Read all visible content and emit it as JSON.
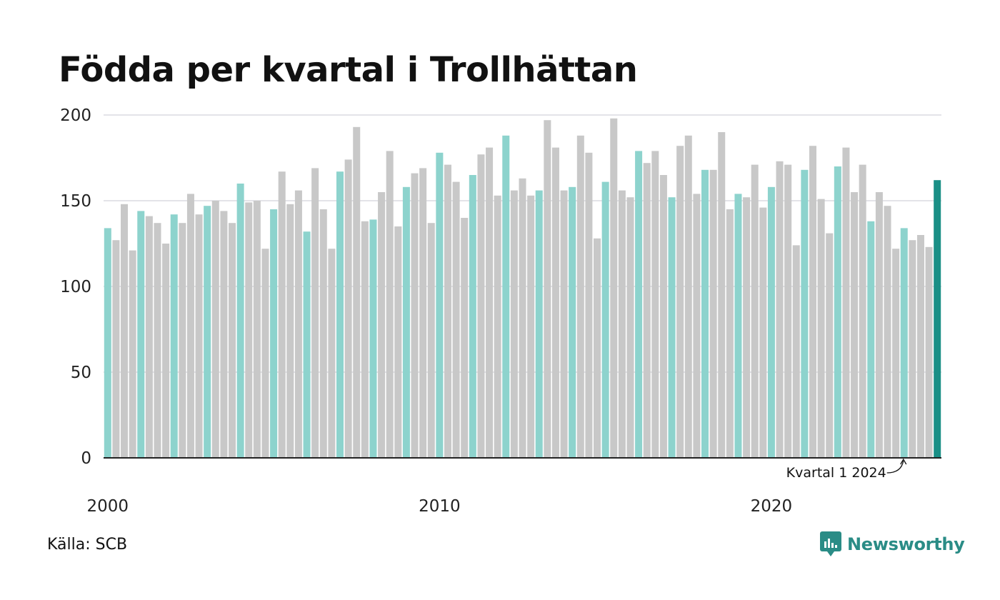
{
  "header": {
    "title": "Födda per kvartal i Trollhättan"
  },
  "footer": {
    "source": "Källa: SCB",
    "brand": "Newsworthy"
  },
  "colors": {
    "q1": "#8dd3cd",
    "other": "#c8c8c8",
    "highlight": "#1a8f86",
    "grid": "#e3e3e8",
    "axis": "#222222",
    "brand": "#2a8c86"
  },
  "chart_data": {
    "type": "bar",
    "start_year": 2000,
    "values": [
      134,
      127,
      148,
      121,
      144,
      141,
      137,
      125,
      142,
      137,
      154,
      142,
      147,
      150,
      144,
      137,
      160,
      149,
      150,
      122,
      145,
      167,
      148,
      156,
      132,
      169,
      145,
      122,
      167,
      174,
      193,
      138,
      139,
      155,
      179,
      135,
      158,
      166,
      169,
      137,
      178,
      171,
      161,
      140,
      165,
      177,
      181,
      153,
      188,
      156,
      163,
      153,
      156,
      197,
      181,
      156,
      158,
      188,
      178,
      128,
      161,
      198,
      156,
      152,
      179,
      172,
      179,
      165,
      152,
      182,
      188,
      154,
      168,
      168,
      190,
      145,
      154,
      152,
      171,
      146,
      158,
      173,
      171,
      124,
      168,
      182,
      151,
      131,
      170,
      181,
      155,
      171,
      138,
      155,
      147,
      122,
      134,
      127,
      130,
      123,
      162
    ],
    "ylim": [
      0,
      200
    ],
    "yticks": [
      0,
      50,
      100,
      150,
      200
    ],
    "xticks": [
      "2000",
      "2010",
      "2020"
    ],
    "grid": true,
    "annotation": {
      "text": "Kvartal 1 2024",
      "target_index": 96
    }
  }
}
